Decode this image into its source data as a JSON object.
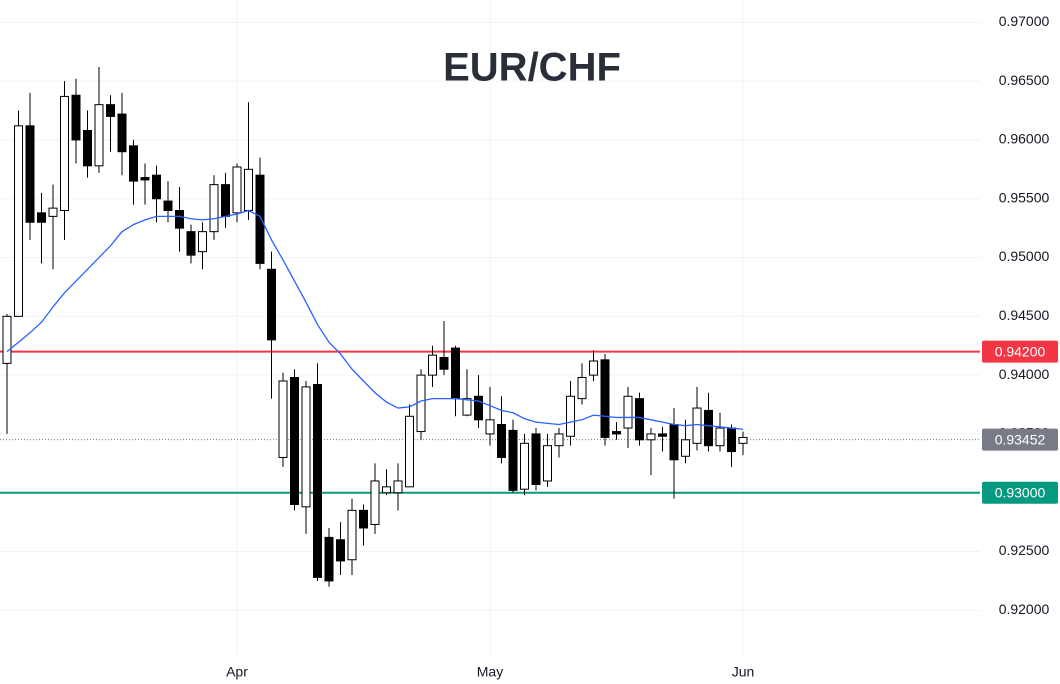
{
  "chart_data": {
    "type": "candlestick",
    "title": "EUR/CHF",
    "categories": [
      null,
      null,
      null,
      null,
      null,
      null,
      null,
      null,
      null,
      null,
      null,
      null,
      null,
      null,
      null,
      null,
      null,
      null,
      null,
      null,
      "Apr",
      null,
      null,
      null,
      null,
      null,
      null,
      null,
      null,
      null,
      null,
      null,
      null,
      null,
      null,
      null,
      null,
      null,
      null,
      null,
      null,
      null,
      "May",
      null,
      null,
      null,
      null,
      null,
      null,
      null,
      null,
      null,
      null,
      null,
      null,
      null,
      null,
      null,
      null,
      null,
      null,
      null,
      null,
      null,
      "Jun"
    ],
    "open": [
      0.941,
      0.945,
      0.9612,
      0.9538,
      0.9535,
      0.954,
      0.9638,
      0.9608,
      0.9578,
      0.963,
      0.9622,
      0.9595,
      0.9568,
      0.957,
      0.9548,
      0.954,
      0.9522,
      0.9505,
      0.9522,
      0.9562,
      0.9538,
      0.954,
      0.957,
      0.949,
      0.933,
      0.9398,
      0.9288,
      0.9392,
      0.9262,
      0.926,
      0.9243,
      0.9285,
      0.9273,
      0.93,
      0.93,
      0.9305,
      0.9352,
      0.94,
      0.9415,
      0.9423,
      0.9366,
      0.9382,
      0.935,
      0.9358,
      0.9353,
      0.9303,
      0.935,
      0.931,
      0.934,
      0.9348,
      0.938,
      0.94,
      0.9413,
      0.9352,
      0.9355,
      0.938,
      0.9345,
      0.935,
      0.9358,
      0.9331,
      0.9342,
      0.937,
      0.934,
      0.9355,
      0.9342
    ],
    "high": [
      0.9452,
      0.9625,
      0.964,
      0.9555,
      0.9562,
      0.965,
      0.9652,
      0.9625,
      0.9662,
      0.9638,
      0.964,
      0.96,
      0.958,
      0.9578,
      0.9565,
      0.956,
      0.9528,
      0.953,
      0.957,
      0.9572,
      0.958,
      0.9632,
      0.9585,
      0.9505,
      0.9402,
      0.9405,
      0.9395,
      0.941,
      0.927,
      0.9275,
      0.9295,
      0.929,
      0.9325,
      0.932,
      0.9325,
      0.9375,
      0.9405,
      0.9425,
      0.9446,
      0.9425,
      0.9405,
      0.94,
      0.939,
      0.9382,
      0.9362,
      0.935,
      0.9355,
      0.935,
      0.9355,
      0.9395,
      0.941,
      0.9421,
      0.9418,
      0.936,
      0.939,
      0.9385,
      0.9355,
      0.9356,
      0.9372,
      0.9362,
      0.939,
      0.9385,
      0.9368,
      0.9358,
      0.9352
    ],
    "low": [
      0.935,
      0.945,
      0.9515,
      0.9495,
      0.949,
      0.9515,
      0.958,
      0.9568,
      0.9572,
      0.959,
      0.957,
      0.9545,
      0.9545,
      0.953,
      0.953,
      0.9505,
      0.9495,
      0.949,
      0.9515,
      0.9525,
      0.953,
      0.9532,
      0.949,
      0.938,
      0.9322,
      0.9285,
      0.9265,
      0.9225,
      0.922,
      0.923,
      0.923,
      0.9255,
      0.9265,
      0.9298,
      0.9285,
      0.9305,
      0.9345,
      0.939,
      0.94,
      0.9365,
      0.9365,
      0.9355,
      0.934,
      0.9325,
      0.93,
      0.9298,
      0.9302,
      0.9305,
      0.933,
      0.934,
      0.9375,
      0.9395,
      0.934,
      0.9345,
      0.9338,
      0.934,
      0.9315,
      0.9335,
      0.9295,
      0.9325,
      0.9336,
      0.9335,
      0.9335,
      0.9322,
      0.9332
    ],
    "close": [
      0.945,
      0.9612,
      0.953,
      0.953,
      0.9542,
      0.9637,
      0.96,
      0.9578,
      0.963,
      0.962,
      0.959,
      0.9565,
      0.9566,
      0.955,
      0.954,
      0.9525,
      0.9502,
      0.9522,
      0.9562,
      0.9535,
      0.9577,
      0.9575,
      0.9495,
      0.943,
      0.9395,
      0.929,
      0.939,
      0.9228,
      0.9225,
      0.9242,
      0.9285,
      0.927,
      0.931,
      0.9305,
      0.931,
      0.9365,
      0.94,
      0.9417,
      0.9405,
      0.938,
      0.938,
      0.9362,
      0.9362,
      0.933,
      0.9302,
      0.9342,
      0.9307,
      0.934,
      0.935,
      0.9382,
      0.9398,
      0.9412,
      0.9347,
      0.935,
      0.9382,
      0.9345,
      0.935,
      0.9348,
      0.9328,
      0.9345,
      0.9372,
      0.934,
      0.9355,
      0.9335,
      0.9347
    ],
    "up_color": "#ffffff",
    "down_color": "#000000",
    "ma": {
      "color": "#2962ff",
      "values": [
        0.942,
        0.9428,
        0.9436,
        0.9445,
        0.9458,
        0.947,
        0.948,
        0.949,
        0.95,
        0.951,
        0.9522,
        0.9528,
        0.9532,
        0.9535,
        0.9535,
        0.9535,
        0.9533,
        0.9532,
        0.9533,
        0.9535,
        0.9537,
        0.954,
        0.9535,
        0.9515,
        0.9498,
        0.948,
        0.9462,
        0.9443,
        0.9428,
        0.9418,
        0.9405,
        0.9395,
        0.9385,
        0.9377,
        0.9372,
        0.9373,
        0.9378,
        0.938,
        0.938,
        0.938,
        0.9379,
        0.9378,
        0.9374,
        0.937,
        0.9368,
        0.9363,
        0.936,
        0.9359,
        0.9358,
        0.936,
        0.9362,
        0.9366,
        0.9365,
        0.9364,
        0.9364,
        0.9364,
        0.9362,
        0.936,
        0.9358,
        0.9357,
        0.9358,
        0.9357,
        0.9356,
        0.9355,
        0.9354
      ]
    },
    "levels": [
      {
        "value": 0.942,
        "label": "0.94200",
        "color": "#f23645",
        "style": "solid"
      },
      {
        "value": 0.93,
        "label": "0.93000",
        "color": "#089981",
        "style": "solid"
      },
      {
        "value": 0.93452,
        "label": "0.93452",
        "color": "#787b86",
        "style": "dotted"
      }
    ],
    "ylim": [
      0.9162,
      0.9719
    ],
    "yticks": [
      {
        "value": 0.92,
        "label": "0.92000"
      },
      {
        "value": 0.925,
        "label": "0.92500"
      },
      {
        "value": 0.93,
        "label": "0.93000"
      },
      {
        "value": 0.935,
        "label": "0.93500"
      },
      {
        "value": 0.94,
        "label": "0.94000"
      },
      {
        "value": 0.945,
        "label": "0.94500"
      },
      {
        "value": 0.95,
        "label": "0.95000"
      },
      {
        "value": 0.955,
        "label": "0.95500"
      },
      {
        "value": 0.96,
        "label": "0.96000"
      },
      {
        "value": 0.965,
        "label": "0.96500"
      },
      {
        "value": 0.97,
        "label": "0.97000"
      }
    ],
    "grid": true
  }
}
